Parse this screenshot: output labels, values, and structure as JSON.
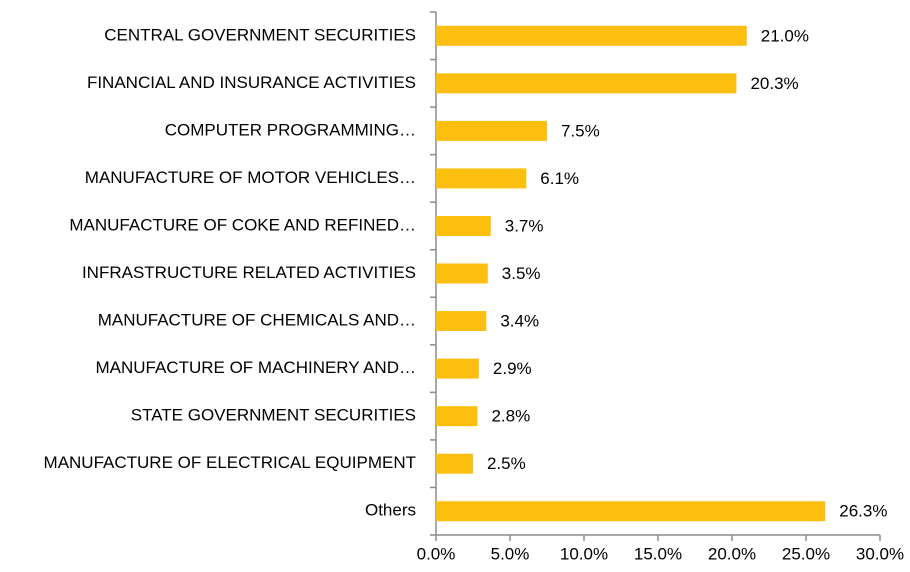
{
  "chart_data": {
    "type": "bar",
    "orientation": "horizontal",
    "categories": [
      "CENTRAL GOVERNMENT SECURITIES",
      "FINANCIAL AND INSURANCE ACTIVITIES",
      "COMPUTER PROGRAMMING…",
      "MANUFACTURE OF MOTOR VEHICLES…",
      "MANUFACTURE OF COKE AND REFINED…",
      "INFRASTRUCTURE RELATED ACTIVITIES",
      "MANUFACTURE OF CHEMICALS AND…",
      "MANUFACTURE OF MACHINERY AND…",
      "STATE GOVERNMENT SECURITIES",
      "MANUFACTURE OF ELECTRICAL EQUIPMENT",
      "Others"
    ],
    "values": [
      21.0,
      20.3,
      7.5,
      6.1,
      3.7,
      3.5,
      3.4,
      2.9,
      2.8,
      2.5,
      26.3
    ],
    "value_labels": [
      "21.0%",
      "20.3%",
      "7.5%",
      "6.1%",
      "3.7%",
      "3.5%",
      "3.4%",
      "2.9%",
      "2.8%",
      "2.5%",
      "26.3%"
    ],
    "color": "#fcbf0f",
    "xlim": [
      0,
      30
    ],
    "xticks": [
      {
        "value": 0,
        "label": "0.0%"
      },
      {
        "value": 5,
        "label": "5.0%"
      },
      {
        "value": 10,
        "label": "10.0%"
      },
      {
        "value": 15,
        "label": "15.0%"
      },
      {
        "value": 20,
        "label": "20.0%"
      },
      {
        "value": 25,
        "label": "25.0%"
      },
      {
        "value": 30,
        "label": "30.0%"
      }
    ],
    "grid": false
  }
}
